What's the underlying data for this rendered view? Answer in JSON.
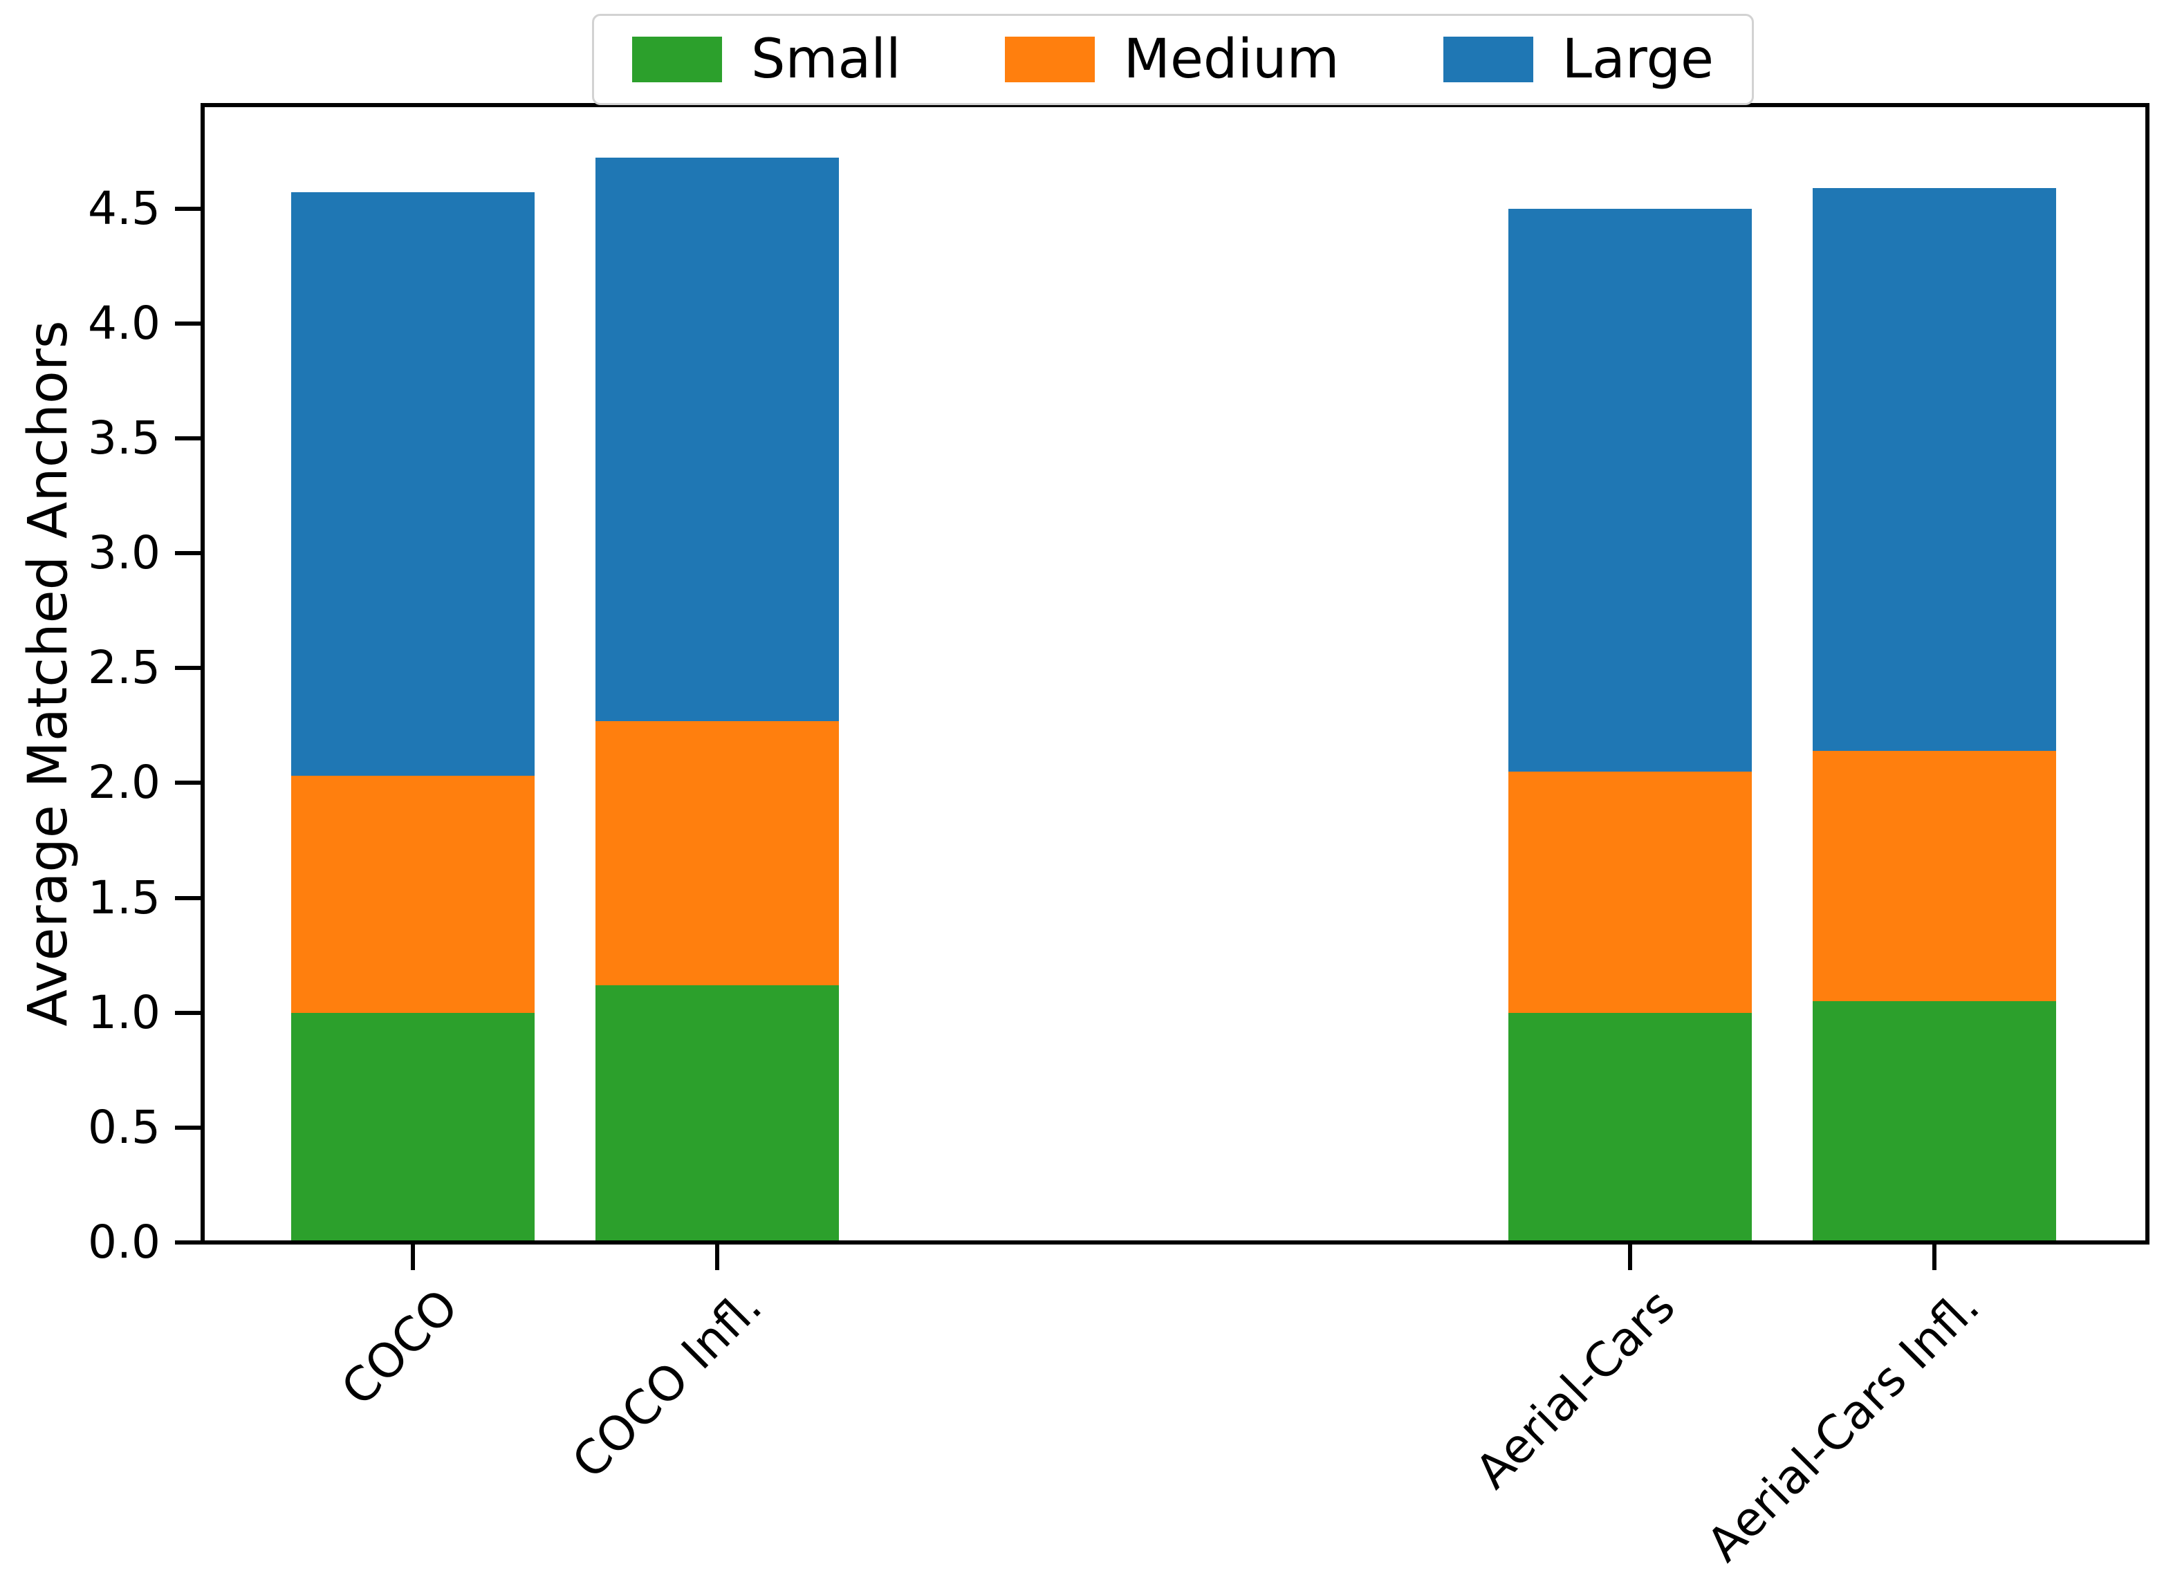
{
  "chart_data": {
    "type": "bar",
    "stacked": true,
    "title": "",
    "xlabel": "",
    "ylabel": "Average Matched Anchors",
    "categories": [
      "COCO",
      "COCO Infl.",
      "Aerial-Cars",
      "Aerial-Cars Infl."
    ],
    "x_positions": [
      0,
      1,
      4,
      5
    ],
    "bar_width": 0.8,
    "series": [
      {
        "name": "Small",
        "color": "#2ca02c",
        "values": [
          1.0,
          1.12,
          1.0,
          1.05
        ]
      },
      {
        "name": "Medium",
        "color": "#ff7f0e",
        "values": [
          1.03,
          1.15,
          1.05,
          1.09
        ]
      },
      {
        "name": "Large",
        "color": "#1f77b4",
        "values": [
          2.54,
          2.45,
          2.45,
          2.45
        ]
      }
    ],
    "stack_totals": [
      4.57,
      4.72,
      4.5,
      4.59
    ],
    "ylim": [
      0,
      4.95
    ],
    "xlim": [
      -0.69,
      5.7
    ],
    "yticks": [
      "0.0",
      "0.5",
      "1.0",
      "1.5",
      "2.0",
      "2.5",
      "3.0",
      "3.5",
      "4.0",
      "4.5"
    ],
    "x_tick_rotation_deg": 45,
    "grid": false,
    "legend_position": "top-center",
    "axis_color": "#000000",
    "background_color": "#ffffff"
  }
}
